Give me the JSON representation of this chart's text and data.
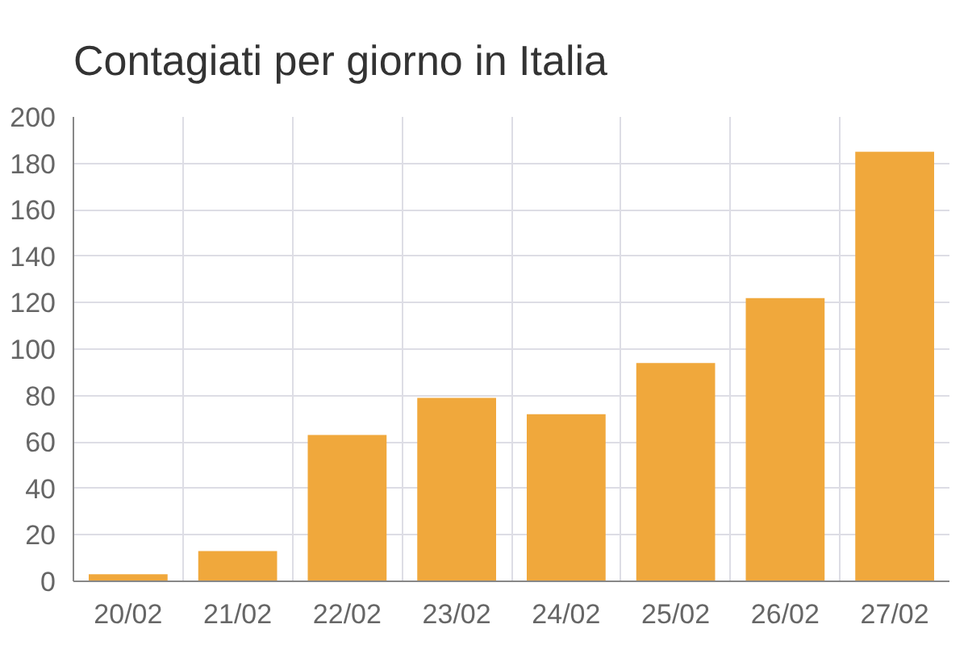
{
  "chart_data": {
    "type": "bar",
    "title": "Contagiati per giorno in Italia",
    "categories": [
      "20/02",
      "21/02",
      "22/02",
      "23/02",
      "24/02",
      "25/02",
      "26/02",
      "27/02"
    ],
    "values": [
      3,
      13,
      63,
      79,
      72,
      94,
      122,
      185
    ],
    "color": "#f0a83c",
    "ylim": [
      0,
      200
    ],
    "yticks": [
      0,
      20,
      40,
      60,
      80,
      100,
      120,
      140,
      160,
      180,
      200
    ],
    "grid": true
  }
}
